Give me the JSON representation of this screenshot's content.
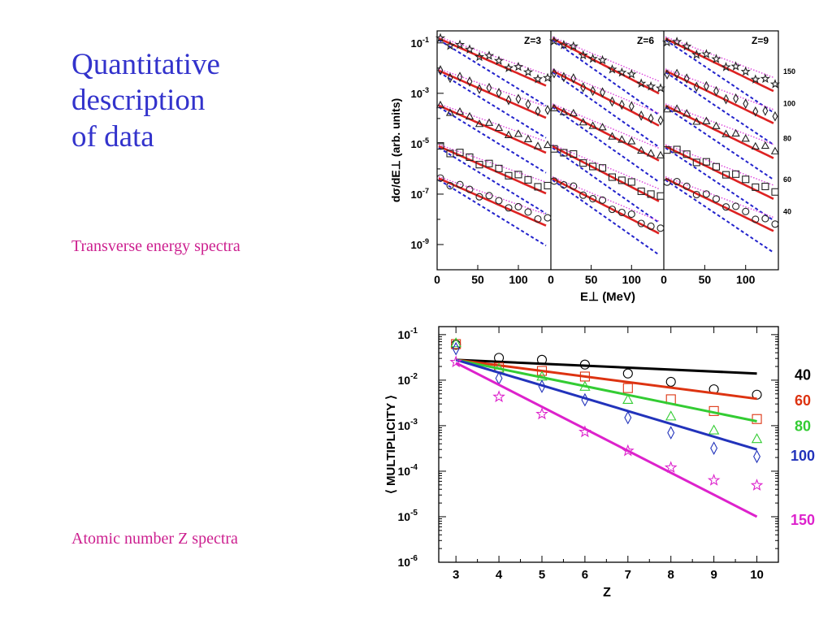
{
  "slide": {
    "title_lines": [
      "Quantitative",
      "description",
      "of data"
    ],
    "caption_top": "Transverse energy spectra",
    "caption_bottom": "Atomic number Z spectra"
  },
  "colors": {
    "title": "#3333cc",
    "caption": "#cc1f8f",
    "fit_red": "#dd2222",
    "dotted_magenta": "#dd44dd",
    "dashed_blue": "#2222cc",
    "e40": "#000000",
    "e60": "#dd3311",
    "e80": "#33cc33",
    "e100": "#2233bb",
    "e150": "#dd22cc"
  },
  "chart_data": [
    {
      "type": "scatter",
      "ylabel": "dσ/dE⊥ (arb. units)",
      "xlabel": "E⊥ (MeV)",
      "y_scale": "log",
      "ylim": [
        1e-10,
        0.3
      ],
      "y_ticks": [
        {
          "value": 0.1,
          "label": "10",
          "exp": "-1"
        },
        {
          "value": 0.001,
          "label": "10",
          "exp": "-3"
        },
        {
          "value": 1e-05,
          "label": "10",
          "exp": "-5"
        },
        {
          "value": 1e-07,
          "label": "10",
          "exp": "-7"
        },
        {
          "value": 1e-09,
          "label": "10",
          "exp": "-9"
        }
      ],
      "xlim": [
        0,
        140
      ],
      "x_ticks": [
        0,
        50,
        100
      ],
      "panels": [
        {
          "label": "Z=3"
        },
        {
          "label": "Z=6"
        },
        {
          "label": "Z=9"
        }
      ],
      "series": [
        {
          "name": "150",
          "marker": "star",
          "base": 0.16
        },
        {
          "name": "100",
          "marker": "diamond",
          "base": 0.0085
        },
        {
          "name": "80",
          "marker": "triangle",
          "base": 0.00035
        },
        {
          "name": "60",
          "marker": "square",
          "base": 8.5e-06
        },
        {
          "name": "40",
          "marker": "circle",
          "base": 4.5e-07
        }
      ],
      "panel_slopes": {
        "data": [
          0.0123,
          0.0154,
          0.0137
        ],
        "fit": [
          0.0142,
          0.0165,
          0.0158
        ],
        "dotted": [
          0.0113,
          0.0133,
          0.0122
        ],
        "dashed": [
          0.0198,
          0.0225,
          0.0218
        ]
      }
    },
    {
      "type": "scatter",
      "ylabel": "⟨ MULTIPLICITY ⟩",
      "xlabel": "Z",
      "y_scale": "log",
      "ylim": [
        1e-06,
        0.15
      ],
      "y_ticks": [
        {
          "value": 0.1,
          "label": "10",
          "exp": "-1"
        },
        {
          "value": 0.01,
          "label": "10",
          "exp": "-2"
        },
        {
          "value": 0.001,
          "label": "10",
          "exp": "-3"
        },
        {
          "value": 0.0001,
          "label": "10",
          "exp": "-4"
        },
        {
          "value": 1e-05,
          "label": "10",
          "exp": "-5"
        },
        {
          "value": 1e-06,
          "label": "10",
          "exp": "-6"
        }
      ],
      "xlim": [
        2.6,
        10.5
      ],
      "x": [
        3,
        4,
        5,
        6,
        7,
        8,
        9,
        10
      ],
      "series": [
        {
          "name": "40",
          "marker": "circle",
          "color": "#000000",
          "values": [
            0.06,
            0.031,
            0.028,
            0.022,
            0.014,
            0.0092,
            0.0063,
            0.0048
          ],
          "fit": [
            0.028,
            0.014
          ]
        },
        {
          "name": "60",
          "marker": "square",
          "color": "#dd3311",
          "values": [
            0.062,
            0.019,
            0.016,
            0.012,
            0.0067,
            0.0038,
            0.0021,
            0.0014
          ],
          "fit": [
            0.028,
            0.0039
          ]
        },
        {
          "name": "80",
          "marker": "triangle",
          "color": "#33cc33",
          "values": [
            0.065,
            0.018,
            0.012,
            0.0072,
            0.0037,
            0.0016,
            0.00079,
            0.00051
          ],
          "fit": [
            0.028,
            0.00125
          ]
        },
        {
          "name": "100",
          "marker": "diamond",
          "color": "#2233bb",
          "values": [
            0.049,
            0.011,
            0.0073,
            0.0037,
            0.0015,
            0.0007,
            0.00032,
            0.00021
          ],
          "fit": [
            0.028,
            0.0003
          ]
        },
        {
          "name": "150",
          "marker": "star",
          "color": "#dd22cc",
          "values": [
            0.025,
            0.0043,
            0.0018,
            0.00073,
            0.00028,
            0.00012,
            6.3e-05,
            4.9e-05
          ],
          "fit": [
            0.024,
            1e-05
          ]
        }
      ]
    }
  ]
}
